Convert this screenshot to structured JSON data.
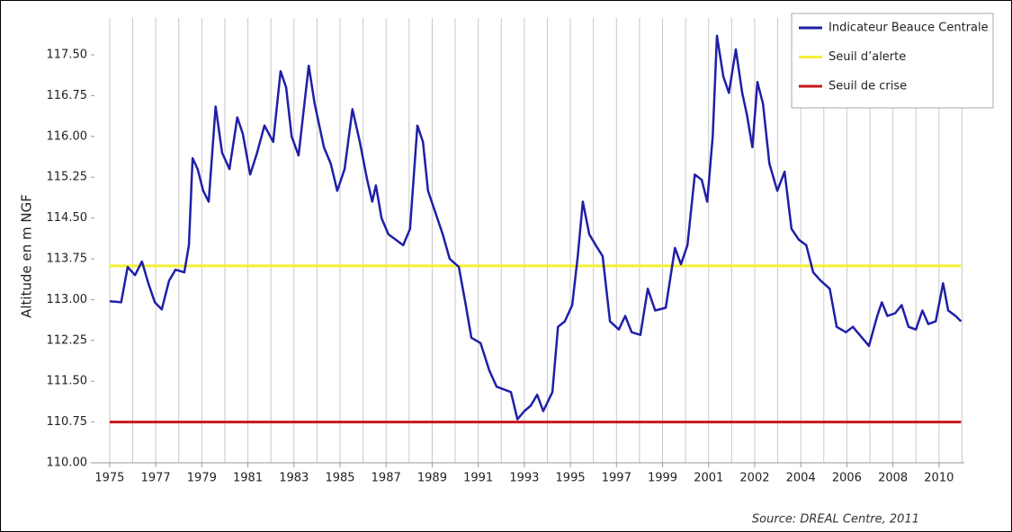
{
  "chart_data": {
    "type": "line",
    "y_label": "Altitude en m NGF",
    "source": "Source: DREAL Centre, 2011",
    "xlim": [
      -0.33,
      18.55
    ],
    "xticks": [
      {
        "value": 0,
        "label": "1975"
      },
      {
        "value": 1,
        "label": "1977"
      },
      {
        "value": 2,
        "label": "1979"
      },
      {
        "value": 3,
        "label": "1981"
      },
      {
        "value": 4,
        "label": "1983"
      },
      {
        "value": 5,
        "label": "1985"
      },
      {
        "value": 6,
        "label": "1987"
      },
      {
        "value": 7,
        "label": "1989"
      },
      {
        "value": 8,
        "label": "1991"
      },
      {
        "value": 9,
        "label": "1993"
      },
      {
        "value": 10,
        "label": "1995"
      },
      {
        "value": 11,
        "label": "1997"
      },
      {
        "value": 12,
        "label": "1999"
      },
      {
        "value": 13,
        "label": "2001"
      },
      {
        "value": 14,
        "label": "2002"
      },
      {
        "value": 15,
        "label": "2004"
      },
      {
        "value": 16,
        "label": "2006"
      },
      {
        "value": 17,
        "label": "2008"
      },
      {
        "value": 18,
        "label": "2010"
      }
    ],
    "ylim": [
      110.0,
      117.5
    ],
    "yticks": [
      {
        "value": 110.0,
        "label": "110.00"
      },
      {
        "value": 110.75,
        "label": "110.75"
      },
      {
        "value": 111.5,
        "label": "111.50"
      },
      {
        "value": 112.25,
        "label": "112.25"
      },
      {
        "value": 113.0,
        "label": "113.00"
      },
      {
        "value": 113.75,
        "label": "113.75"
      },
      {
        "value": 114.5,
        "label": "114.50"
      },
      {
        "value": 115.25,
        "label": "115.25"
      },
      {
        "value": 116.0,
        "label": "116.00"
      },
      {
        "value": 116.75,
        "label": "116.75"
      },
      {
        "value": 117.5,
        "label": "117.50"
      }
    ],
    "grid": true,
    "legend": "top-right",
    "series": [
      {
        "name": "Indicateur Beauce Centrale",
        "color": "#1f1fa8",
        "x": [
          0,
          0.25,
          0.39,
          0.55,
          0.7,
          0.84,
          0.98,
          1.13,
          1.29,
          1.43,
          1.62,
          1.72,
          1.8,
          1.91,
          2.03,
          2.15,
          2.3,
          2.44,
          2.6,
          2.77,
          2.89,
          3.05,
          3.2,
          3.36,
          3.55,
          3.71,
          3.83,
          3.95,
          4.1,
          4.32,
          4.45,
          4.65,
          4.8,
          4.94,
          5.1,
          5.27,
          5.43,
          5.59,
          5.7,
          5.78,
          5.9,
          6.05,
          6.21,
          6.37,
          6.52,
          6.68,
          6.8,
          6.91,
          7.07,
          7.23,
          7.38,
          7.58,
          7.73,
          7.85,
          8.05,
          8.24,
          8.4,
          8.71,
          8.85,
          9.0,
          9.14,
          9.28,
          9.41,
          9.61,
          9.73,
          9.88,
          10.04,
          10.16,
          10.27,
          10.41,
          10.55,
          10.7,
          10.86,
          11.05,
          11.19,
          11.33,
          11.52,
          11.68,
          11.84,
          12.07,
          12.27,
          12.4,
          12.54,
          12.7,
          12.85,
          12.97,
          13.09,
          13.18,
          13.32,
          13.44,
          13.59,
          13.73,
          13.83,
          13.95,
          14.06,
          14.18,
          14.32,
          14.49,
          14.65,
          14.8,
          14.96,
          15.12,
          15.27,
          15.43,
          15.63,
          15.78,
          15.98,
          16.13,
          16.33,
          16.48,
          16.66,
          16.76,
          16.88,
          17.05,
          17.19,
          17.34,
          17.5,
          17.64,
          17.77,
          17.93,
          18.09,
          18.2,
          18.36,
          18.48
        ],
        "values": [
          112.97,
          112.95,
          113.6,
          113.45,
          113.7,
          113.3,
          112.95,
          112.82,
          113.35,
          113.55,
          113.5,
          114.0,
          115.6,
          115.4,
          115.0,
          114.8,
          116.55,
          115.7,
          115.4,
          116.35,
          116.05,
          115.3,
          115.7,
          116.2,
          115.9,
          117.2,
          116.9,
          116.0,
          115.65,
          117.3,
          116.6,
          115.8,
          115.5,
          115.0,
          115.4,
          116.5,
          115.9,
          115.2,
          114.8,
          115.1,
          114.5,
          114.2,
          114.1,
          114.0,
          114.3,
          116.2,
          115.9,
          115.0,
          114.6,
          114.2,
          113.75,
          113.6,
          112.9,
          112.3,
          112.2,
          111.7,
          111.4,
          111.3,
          110.8,
          110.95,
          111.05,
          111.25,
          110.95,
          111.3,
          112.5,
          112.6,
          112.9,
          113.8,
          114.8,
          114.2,
          114.0,
          113.8,
          112.6,
          112.45,
          112.7,
          112.4,
          112.35,
          113.2,
          112.8,
          112.85,
          113.95,
          113.65,
          114.0,
          115.3,
          115.2,
          114.8,
          116.0,
          117.85,
          117.1,
          116.8,
          117.6,
          116.8,
          116.4,
          115.8,
          117.0,
          116.6,
          115.5,
          115.0,
          115.35,
          114.3,
          114.1,
          114.0,
          113.5,
          113.35,
          113.2,
          112.5,
          112.4,
          112.5,
          112.3,
          112.15,
          112.7,
          112.95,
          112.7,
          112.75,
          112.9,
          112.5,
          112.45,
          112.8,
          112.55,
          112.6,
          113.3,
          112.8,
          112.7,
          112.6
        ]
      }
    ],
    "reference_lines": [
      {
        "name": "Seuil d’alerte",
        "color": "#f5f032",
        "value": 113.62
      },
      {
        "name": "Seuil de crise",
        "color": "#c8171c",
        "value": 110.75
      }
    ]
  }
}
